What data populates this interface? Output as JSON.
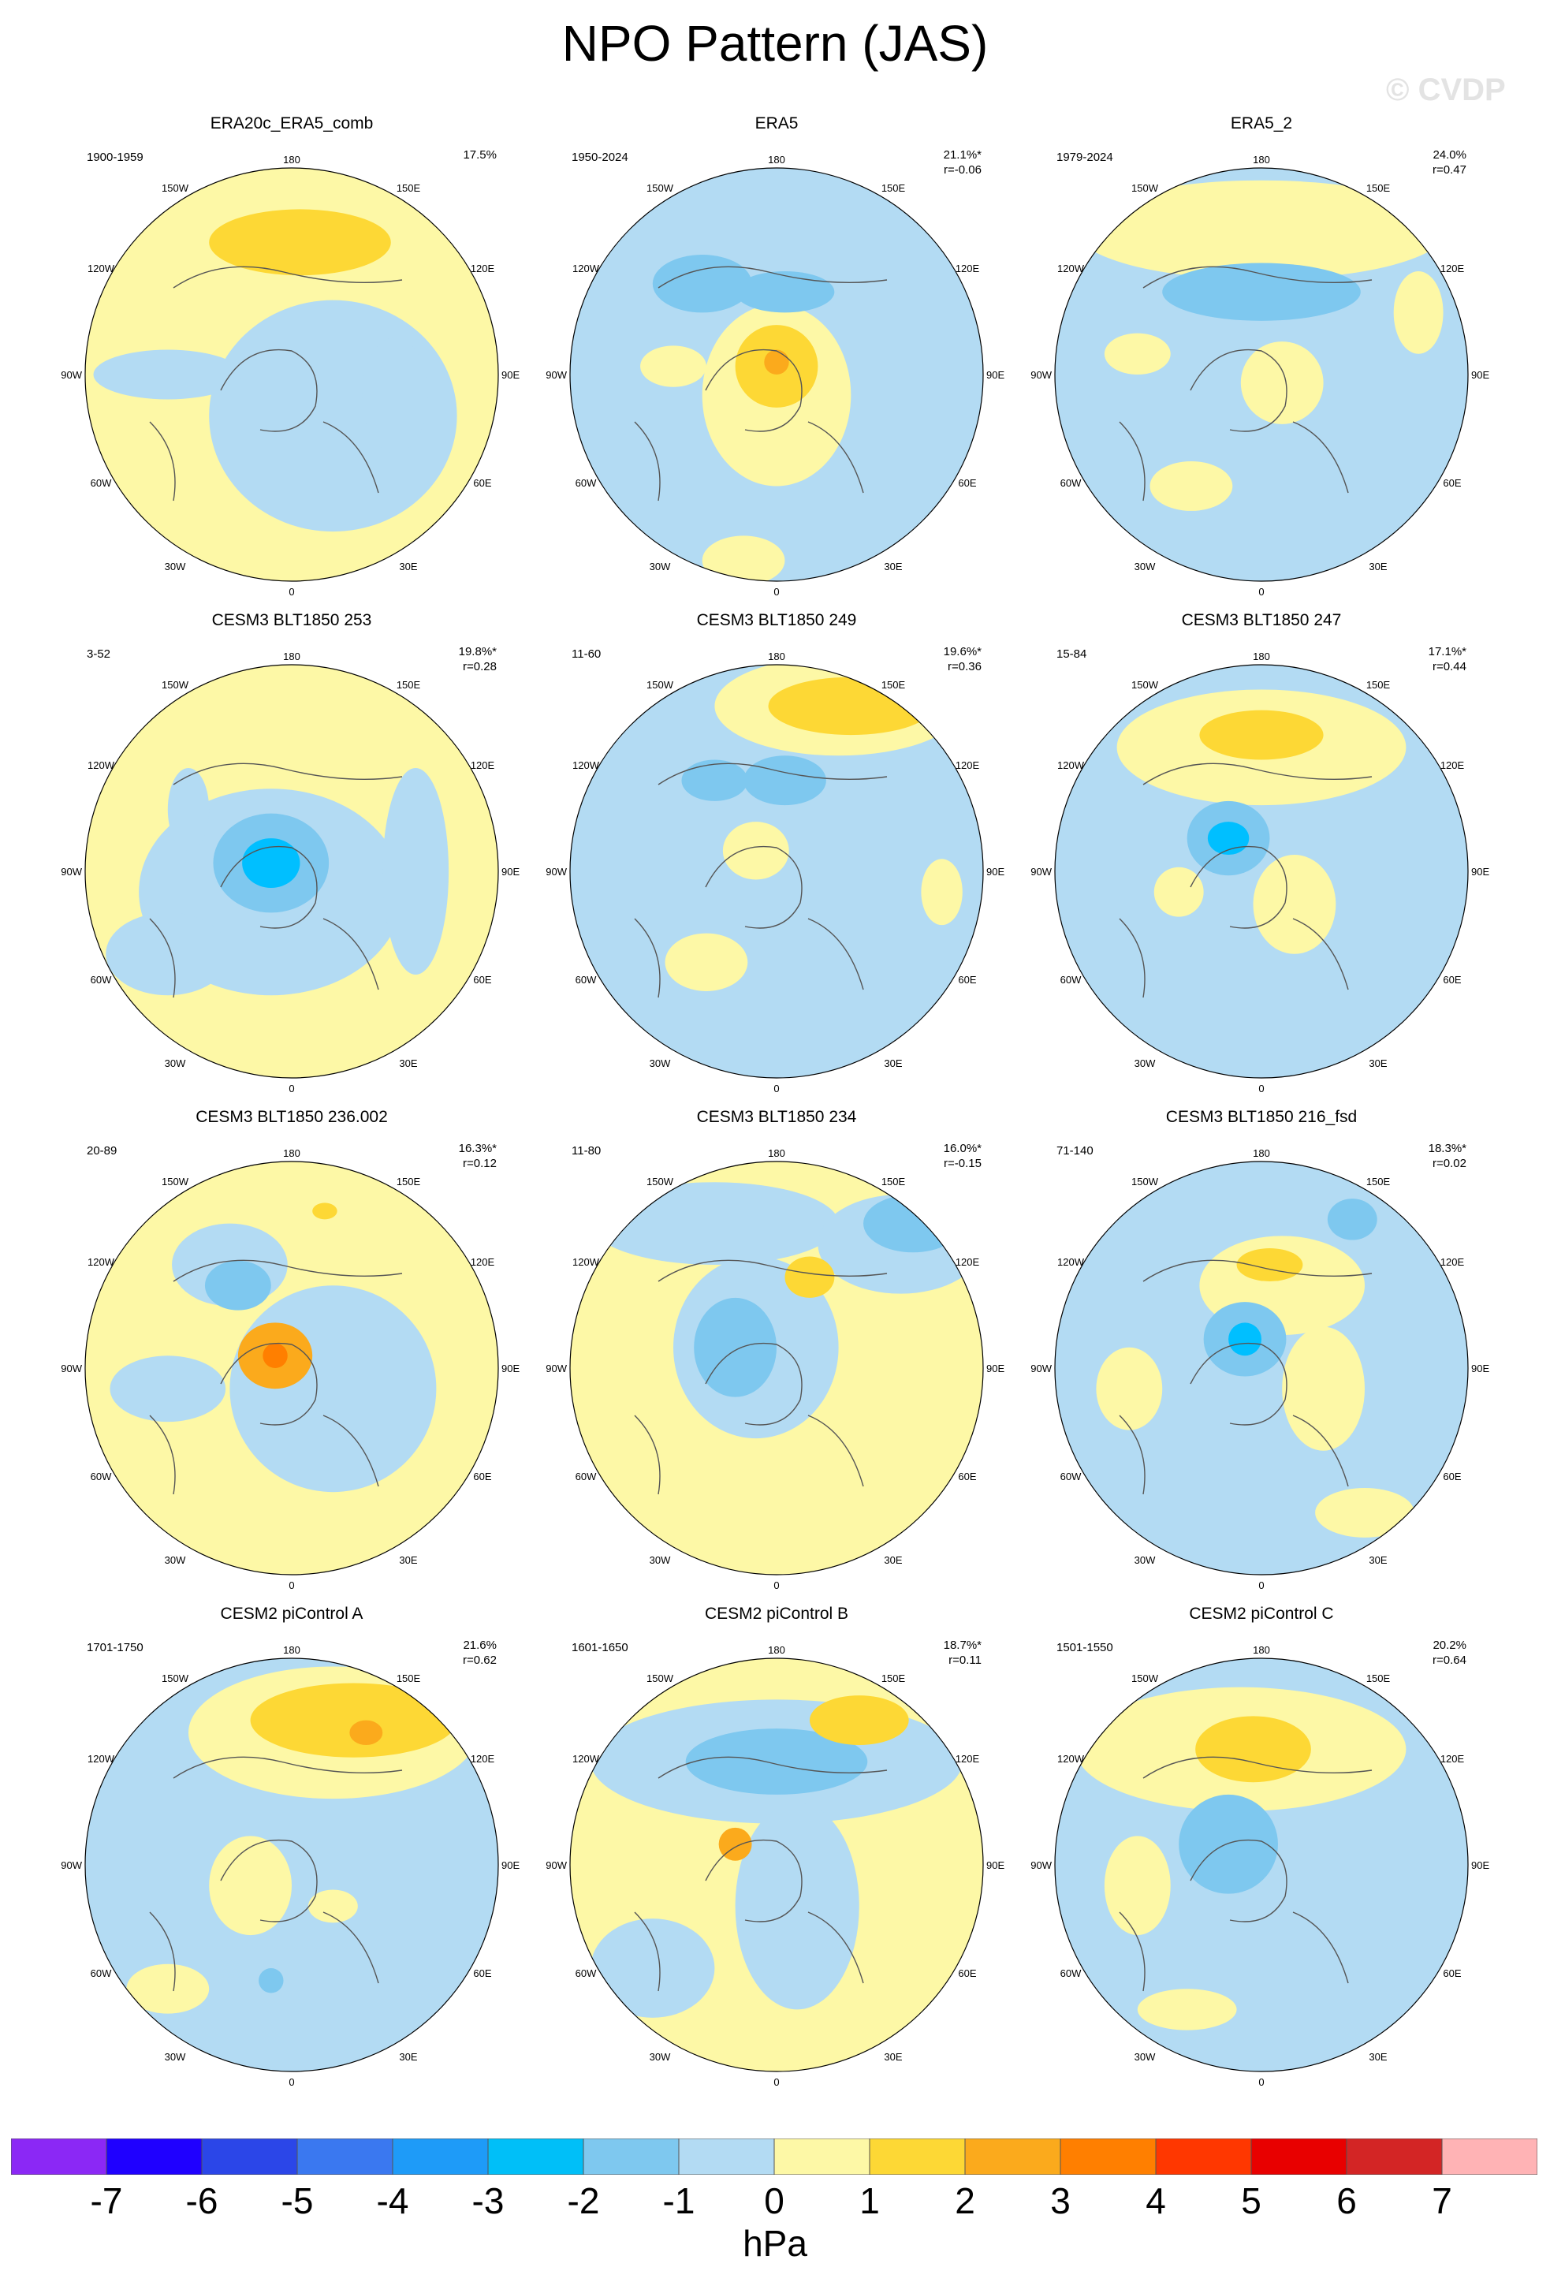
{
  "title": "NPO Pattern (JAS)",
  "watermark": "© CVDP",
  "panels": [
    {
      "title": "ERA20c_ERA5_comb",
      "years": "1900-1959",
      "pct": "17.5%",
      "r": "",
      "base": "#fdf8a6",
      "lows": [],
      "highs": [
        [
          0.52,
          0.18,
          0.22,
          0.08,
          "#fdd835"
        ]
      ],
      "bg": "#fdf8a6",
      "fg": "#b3dbf3",
      "blobs": [
        [
          0.6,
          0.6,
          0.3,
          0.28
        ],
        [
          0.2,
          0.5,
          0.18,
          0.06
        ],
        [
          0.75,
          0.55,
          0.08,
          0.14
        ]
      ]
    },
    {
      "title": "ERA5",
      "years": "1950-2024",
      "pct": "21.1%*",
      "r": "r=-0.06",
      "base": "#b3dbf3",
      "lows": [
        [
          0.32,
          0.28,
          0.12,
          0.07,
          "#7ec8ef"
        ],
        [
          0.52,
          0.3,
          0.12,
          0.05,
          "#7ec8ef"
        ]
      ],
      "highs": [
        [
          0.5,
          0.48,
          0.1,
          0.1,
          "#fdd835"
        ],
        [
          0.5,
          0.47,
          0.03,
          0.03,
          "#fbaa1c"
        ]
      ],
      "bg": "#b3dbf3",
      "fg": "#fdf8a6",
      "blobs": [
        [
          0.5,
          0.55,
          0.18,
          0.22
        ],
        [
          0.25,
          0.48,
          0.08,
          0.05
        ],
        [
          0.42,
          0.95,
          0.1,
          0.06
        ]
      ]
    },
    {
      "title": "ERA5_2",
      "years": "1979-2024",
      "pct": "24.0%",
      "r": "r=0.47",
      "base": "#b3dbf3",
      "lows": [
        [
          0.5,
          0.3,
          0.24,
          0.07,
          "#7ec8ef"
        ]
      ],
      "highs": [],
      "bg": "#b3dbf3",
      "fg": "#fdf8a6",
      "blobs": [
        [
          0.5,
          0.15,
          0.45,
          0.12
        ],
        [
          0.55,
          0.52,
          0.1,
          0.1
        ],
        [
          0.33,
          0.77,
          0.1,
          0.06
        ],
        [
          0.2,
          0.45,
          0.08,
          0.05
        ],
        [
          0.88,
          0.35,
          0.06,
          0.1
        ]
      ]
    },
    {
      "title": "CESM3 BLT1850 253",
      "years": "3-52",
      "pct": "19.8%*",
      "r": "r=0.28",
      "base": "#fdf8a6",
      "lows": [
        [
          0.45,
          0.48,
          0.14,
          0.12,
          "#7ec8ef"
        ],
        [
          0.45,
          0.48,
          0.07,
          0.06,
          "#00bfff"
        ]
      ],
      "highs": [],
      "bg": "#fdf8a6",
      "fg": "#b3dbf3",
      "blobs": [
        [
          0.45,
          0.55,
          0.32,
          0.25
        ],
        [
          0.8,
          0.5,
          0.08,
          0.25
        ],
        [
          0.2,
          0.7,
          0.15,
          0.1
        ],
        [
          0.25,
          0.35,
          0.05,
          0.1
        ]
      ]
    },
    {
      "title": "CESM3 BLT1850 249",
      "years": "11-60",
      "pct": "19.6%*",
      "r": "r=0.36",
      "base": "#b3dbf3",
      "lows": [
        [
          0.35,
          0.28,
          0.08,
          0.05,
          "#7ec8ef"
        ],
        [
          0.52,
          0.28,
          0.1,
          0.06,
          "#7ec8ef"
        ]
      ],
      "highs": [
        [
          0.68,
          0.1,
          0.2,
          0.07,
          "#fdd835"
        ]
      ],
      "bg": "#b3dbf3",
      "fg": "#fdf8a6",
      "blobs": [
        [
          0.65,
          0.1,
          0.3,
          0.12
        ],
        [
          0.33,
          0.72,
          0.1,
          0.07
        ],
        [
          0.45,
          0.45,
          0.08,
          0.07
        ],
        [
          0.9,
          0.55,
          0.05,
          0.08
        ]
      ]
    },
    {
      "title": "CESM3 BLT1850 247",
      "years": "15-84",
      "pct": "17.1%*",
      "r": "r=0.44",
      "base": "#b3dbf3",
      "lows": [
        [
          0.42,
          0.42,
          0.1,
          0.09,
          "#7ec8ef"
        ],
        [
          0.42,
          0.42,
          0.05,
          0.04,
          "#00bfff"
        ]
      ],
      "highs": [
        [
          0.5,
          0.17,
          0.15,
          0.06,
          "#fdd835"
        ]
      ],
      "bg": "#b3dbf3",
      "fg": "#fdf8a6",
      "blobs": [
        [
          0.5,
          0.2,
          0.35,
          0.14
        ],
        [
          0.58,
          0.58,
          0.1,
          0.12
        ],
        [
          0.3,
          0.55,
          0.06,
          0.06
        ]
      ]
    },
    {
      "title": "CESM3 BLT1850 236.002",
      "years": "20-89",
      "pct": "16.3%*",
      "r": "r=0.12",
      "base": "#fdf8a6",
      "lows": [
        [
          0.37,
          0.3,
          0.08,
          0.06,
          "#7ec8ef"
        ]
      ],
      "highs": [
        [
          0.46,
          0.47,
          0.09,
          0.08,
          "#fbaa1c"
        ],
        [
          0.46,
          0.47,
          0.03,
          0.03,
          "#ff7f00"
        ],
        [
          0.58,
          0.12,
          0.03,
          0.02,
          "#fdd835"
        ]
      ],
      "bg": "#fdf8a6",
      "fg": "#b3dbf3",
      "blobs": [
        [
          0.6,
          0.55,
          0.25,
          0.25
        ],
        [
          0.2,
          0.55,
          0.14,
          0.08
        ],
        [
          0.35,
          0.25,
          0.14,
          0.1
        ]
      ]
    },
    {
      "title": "CESM3 BLT1850 234",
      "years": "11-80",
      "pct": "16.0%*",
      "r": "r=-0.15",
      "base": "#fdf8a6",
      "lows": [
        [
          0.4,
          0.45,
          0.1,
          0.12,
          "#7ec8ef"
        ],
        [
          0.83,
          0.15,
          0.12,
          0.07,
          "#7ec8ef"
        ]
      ],
      "highs": [
        [
          0.58,
          0.28,
          0.06,
          0.05,
          "#fdd835"
        ]
      ],
      "bg": "#fdf8a6",
      "fg": "#b3dbf3",
      "blobs": [
        [
          0.45,
          0.45,
          0.2,
          0.22
        ],
        [
          0.35,
          0.15,
          0.3,
          0.1
        ],
        [
          0.8,
          0.2,
          0.2,
          0.12
        ]
      ]
    },
    {
      "title": "CESM3 BLT1850 216_fsd",
      "years": "71-140",
      "pct": "18.3%*",
      "r": "r=0.02",
      "base": "#b3dbf3",
      "lows": [
        [
          0.46,
          0.43,
          0.1,
          0.09,
          "#7ec8ef"
        ],
        [
          0.46,
          0.43,
          0.04,
          0.04,
          "#00bfff"
        ],
        [
          0.72,
          0.14,
          0.06,
          0.05,
          "#7ec8ef"
        ]
      ],
      "highs": [
        [
          0.52,
          0.25,
          0.08,
          0.04,
          "#fdd835"
        ]
      ],
      "bg": "#b3dbf3",
      "fg": "#fdf8a6",
      "blobs": [
        [
          0.55,
          0.3,
          0.2,
          0.12
        ],
        [
          0.65,
          0.55,
          0.1,
          0.15
        ],
        [
          0.18,
          0.55,
          0.08,
          0.1
        ],
        [
          0.75,
          0.85,
          0.12,
          0.06
        ]
      ]
    },
    {
      "title": "CESM2 piControl A",
      "years": "1701-1750",
      "pct": "21.6%",
      "r": "r=0.62",
      "base": "#b3dbf3",
      "lows": [
        [
          0.45,
          0.78,
          0.03,
          0.03,
          "#7ec8ef"
        ]
      ],
      "highs": [
        [
          0.65,
          0.15,
          0.25,
          0.09,
          "#fdd835"
        ],
        [
          0.68,
          0.18,
          0.04,
          0.03,
          "#fbaa1c"
        ]
      ],
      "bg": "#b3dbf3",
      "fg": "#fdf8a6",
      "blobs": [
        [
          0.6,
          0.18,
          0.35,
          0.16
        ],
        [
          0.4,
          0.55,
          0.1,
          0.12
        ],
        [
          0.2,
          0.8,
          0.1,
          0.06
        ],
        [
          0.6,
          0.6,
          0.06,
          0.04
        ]
      ]
    },
    {
      "title": "CESM2 piControl B",
      "years": "1601-1650",
      "pct": "18.7%*",
      "r": "r=0.11",
      "base": "#fdf8a6",
      "lows": [
        [
          0.5,
          0.25,
          0.22,
          0.08,
          "#7ec8ef"
        ]
      ],
      "highs": [
        [
          0.7,
          0.15,
          0.12,
          0.06,
          "#fdd835"
        ],
        [
          0.4,
          0.45,
          0.04,
          0.04,
          "#fbaa1c"
        ]
      ],
      "bg": "#fdf8a6",
      "fg": "#b3dbf3",
      "blobs": [
        [
          0.5,
          0.25,
          0.45,
          0.15
        ],
        [
          0.55,
          0.6,
          0.15,
          0.25
        ],
        [
          0.2,
          0.75,
          0.15,
          0.12
        ]
      ]
    },
    {
      "title": "CESM2 piControl C",
      "years": "1501-1550",
      "pct": "20.2%",
      "r": "r=0.64",
      "base": "#b3dbf3",
      "lows": [
        [
          0.42,
          0.45,
          0.12,
          0.12,
          "#7ec8ef"
        ]
      ],
      "highs": [
        [
          0.48,
          0.22,
          0.14,
          0.08,
          "#fdd835"
        ]
      ],
      "bg": "#b3dbf3",
      "fg": "#fdf8a6",
      "blobs": [
        [
          0.45,
          0.22,
          0.4,
          0.15
        ],
        [
          0.2,
          0.55,
          0.08,
          0.12
        ],
        [
          0.32,
          0.85,
          0.12,
          0.05
        ]
      ]
    }
  ],
  "lon_labels": {
    "top": "180",
    "tl": "150W",
    "tr": "150E",
    "ul": "120W",
    "ur": "120E",
    "l": "90W",
    "r": "90E",
    "ll": "60W",
    "lr": "60E",
    "bl": "30W",
    "br": "30E",
    "bottom": "0"
  },
  "colorbar": {
    "colors": [
      "#8b28f5",
      "#1f00ff",
      "#2b46e8",
      "#3a78f0",
      "#1e9bf8",
      "#00bff8",
      "#7ec8ef",
      "#b3dbf3",
      "#fdf8a6",
      "#fdd835",
      "#fbaa1c",
      "#ff7f00",
      "#ff3700",
      "#e80000",
      "#d32525",
      "#ffb3b5"
    ],
    "ticks": [
      "-7",
      "-6",
      "-5",
      "-4",
      "-3",
      "-2",
      "-1",
      "0",
      "1",
      "2",
      "3",
      "4",
      "5",
      "6",
      "7"
    ],
    "units": "hPa"
  }
}
